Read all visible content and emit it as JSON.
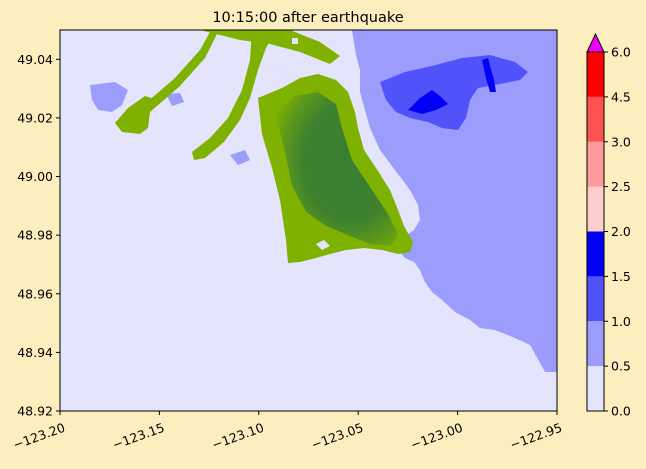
{
  "title": "10:15:00 after earthquake",
  "map": {
    "x_ticks": [
      "−123.20",
      "−123.15",
      "−123.10",
      "−123.05",
      "−123.00",
      "−122.95"
    ],
    "y_ticks": [
      "49.04",
      "49.02",
      "49.00",
      "48.98",
      "48.96",
      "48.94",
      "48.92"
    ],
    "xlim": [
      -123.2,
      -122.95
    ],
    "ylim": [
      48.92,
      49.05
    ],
    "colors": {
      "water_lowest": "#e4e4fd",
      "water_low": "#9c9cfc",
      "water_mid": "#5252fb",
      "water_high": "#0000f6",
      "land_light": "#7fb200",
      "land_dark": "#3a8032",
      "frame_bg": "#fdeebf"
    }
  },
  "colorbar": {
    "tick_labels": [
      "0.0",
      "0.5",
      "1.0",
      "1.5",
      "2.0",
      "2.5",
      "3.0",
      "4.5",
      "6.0"
    ],
    "levels": [
      0.0,
      0.5,
      1.0,
      1.5,
      2.0,
      2.5,
      3.0,
      4.5,
      6.0
    ],
    "colors": [
      "#e4e4fd",
      "#9c9cfc",
      "#5252fb",
      "#0000f6",
      "#fdcccc",
      "#fd9a9a",
      "#fe5252",
      "#fe0000"
    ],
    "extend_color": "#f100f1",
    "extend": "max"
  }
}
